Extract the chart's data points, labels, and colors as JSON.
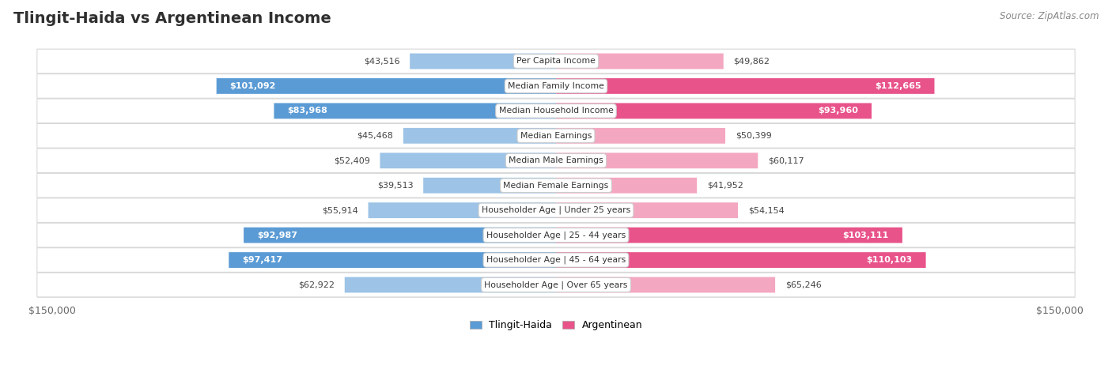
{
  "title": "Tlingit-Haida vs Argentinean Income",
  "source": "Source: ZipAtlas.com",
  "categories": [
    "Per Capita Income",
    "Median Family Income",
    "Median Household Income",
    "Median Earnings",
    "Median Male Earnings",
    "Median Female Earnings",
    "Householder Age | Under 25 years",
    "Householder Age | 25 - 44 years",
    "Householder Age | 45 - 64 years",
    "Householder Age | Over 65 years"
  ],
  "tlingit_values": [
    43516,
    101092,
    83968,
    45468,
    52409,
    39513,
    55914,
    92987,
    97417,
    62922
  ],
  "argentinean_values": [
    49862,
    112665,
    93960,
    50399,
    60117,
    41952,
    54154,
    103111,
    110103,
    65246
  ],
  "tlingit_labels": [
    "$43,516",
    "$101,092",
    "$83,968",
    "$45,468",
    "$52,409",
    "$39,513",
    "$55,914",
    "$92,987",
    "$97,417",
    "$62,922"
  ],
  "argentinean_labels": [
    "$49,862",
    "$112,665",
    "$93,960",
    "$50,399",
    "$60,117",
    "$41,952",
    "$54,154",
    "$103,111",
    "$110,103",
    "$65,246"
  ],
  "tlingit_color_large": "#5b9bd5",
  "tlingit_color_small": "#9dc3e6",
  "argentinean_color_large": "#e8538a",
  "argentinean_color_small": "#f4a7c0",
  "inside_threshold": 75000,
  "max_value": 150000,
  "background_color": "#ffffff",
  "row_bg_light": "#f2f2f2",
  "row_border_color": "#d8d8d8",
  "legend_tlingit_label": "Tlingit-Haida",
  "legend_arg_label": "Argentinean"
}
